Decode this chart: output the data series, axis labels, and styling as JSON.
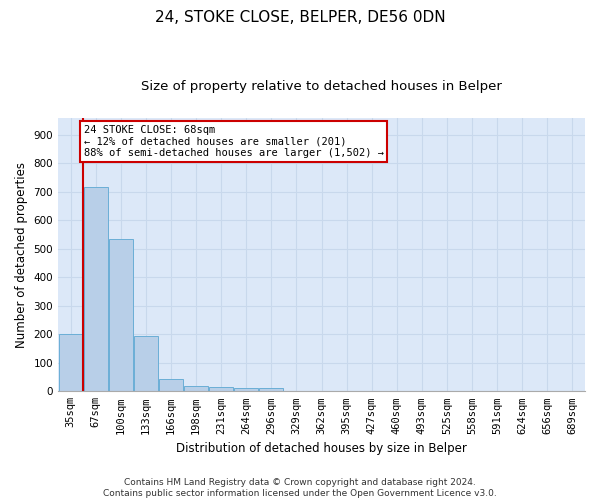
{
  "title": "24, STOKE CLOSE, BELPER, DE56 0DN",
  "subtitle": "Size of property relative to detached houses in Belper",
  "xlabel": "Distribution of detached houses by size in Belper",
  "ylabel": "Number of detached properties",
  "categories": [
    "35sqm",
    "67sqm",
    "100sqm",
    "133sqm",
    "166sqm",
    "198sqm",
    "231sqm",
    "264sqm",
    "296sqm",
    "329sqm",
    "362sqm",
    "395sqm",
    "427sqm",
    "460sqm",
    "493sqm",
    "525sqm",
    "558sqm",
    "591sqm",
    "624sqm",
    "656sqm",
    "689sqm"
  ],
  "values": [
    200,
    717,
    536,
    193,
    42,
    20,
    15,
    12,
    10,
    0,
    0,
    0,
    0,
    0,
    0,
    0,
    0,
    0,
    0,
    0,
    0
  ],
  "bar_color": "#b8cfe8",
  "bar_edge_color": "#6baed6",
  "annotation_text": "24 STOKE CLOSE: 68sqm\n← 12% of detached houses are smaller (201)\n88% of semi-detached houses are larger (1,502) →",
  "annotation_box_color": "#ffffff",
  "annotation_box_edge_color": "#cc0000",
  "vline_color": "#cc0000",
  "ylim": [
    0,
    960
  ],
  "yticks": [
    0,
    100,
    200,
    300,
    400,
    500,
    600,
    700,
    800,
    900
  ],
  "grid_color": "#c8d8ec",
  "bg_color": "#dce8f8",
  "footer_text": "Contains HM Land Registry data © Crown copyright and database right 2024.\nContains public sector information licensed under the Open Government Licence v3.0.",
  "title_fontsize": 11,
  "subtitle_fontsize": 9.5,
  "ylabel_fontsize": 8.5,
  "xlabel_fontsize": 8.5,
  "tick_fontsize": 7.5,
  "footer_fontsize": 6.5
}
